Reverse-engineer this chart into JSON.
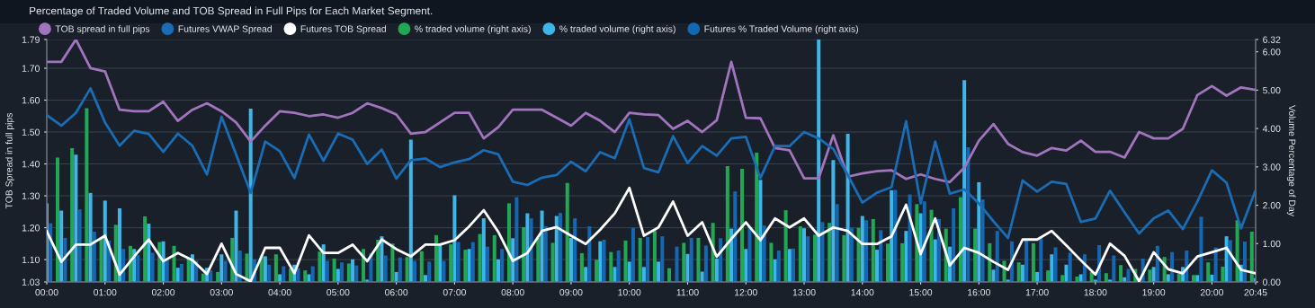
{
  "chart_data": {
    "type": "bar",
    "title": "Percentage of Traded Volume and TOB Spread in Full Pips for Each Market Segment.",
    "ylabel": "TOB Spread in full pips",
    "y2label": "Volume Percentage of Day",
    "categories": [
      "00:00",
      null,
      null,
      null,
      "01:00",
      null,
      null,
      null,
      "02:00",
      null,
      null,
      null,
      "03:00",
      null,
      null,
      null,
      "04:00",
      null,
      null,
      null,
      "05:00",
      null,
      null,
      null,
      "06:00",
      null,
      null,
      null,
      "07:00",
      null,
      null,
      null,
      "08:00",
      null,
      null,
      null,
      "09:00",
      null,
      null,
      null,
      "10:00",
      null,
      null,
      null,
      "11:00",
      null,
      null,
      null,
      "12:00",
      null,
      null,
      null,
      "13:00",
      null,
      null,
      null,
      "14:00",
      null,
      null,
      null,
      "15:00",
      null,
      null,
      null,
      "16:00",
      null,
      null,
      null,
      "17:00",
      null,
      null,
      null,
      "18:00",
      null,
      null,
      null,
      "19:00",
      null,
      null,
      null,
      "20:00",
      null,
      null,
      "20:45"
    ],
    "ylim": [
      1.03,
      1.79
    ],
    "yticks": [
      1.03,
      {
        "value": 1.1,
        "label": "1.10"
      },
      {
        "value": 1.2,
        "label": "1.20"
      },
      {
        "value": 1.3,
        "label": "1.30"
      },
      {
        "value": 1.4,
        "label": "1.40"
      },
      {
        "value": 1.5,
        "label": "1.50"
      },
      {
        "value": 1.6,
        "label": "1.60"
      },
      {
        "value": 1.7,
        "label": "1.70"
      },
      1.79
    ],
    "y2lim": [
      0,
      6.32
    ],
    "y2ticks": [
      {
        "value": 0,
        "label": "0.00"
      },
      {
        "value": 1,
        "label": "1.00"
      },
      {
        "value": 2,
        "label": "2.00"
      },
      {
        "value": 3,
        "label": "3.00"
      },
      {
        "value": 4,
        "label": "4.00"
      },
      {
        "value": 5,
        "label": "5.00"
      },
      {
        "value": 6,
        "label": "6.00"
      },
      6.32
    ],
    "grid": true,
    "legend": "top",
    "series": [
      {
        "name": "% traded volume (right axis)",
        "axis": "y2",
        "color": "#22a855",
        "values": [
          null,
          3.24,
          3.49,
          4.53,
          1.15,
          1.49,
          0.94,
          1.71,
          1.04,
          0.94,
          0.61,
          0.22,
          0.26,
          1.15,
          0.74,
          0.69,
          0.72,
          0.35,
          0.3,
          0.79,
          0.61,
          0.48,
          0.86,
          1.1,
          1.0,
          0.65,
          0.8,
          1.22,
          0.98,
          0.84,
          1.25,
          1.22,
          2.05,
          1.43,
          1.15,
          1.02,
          2.58,
          0.75,
          0.58,
          0.78,
          1.08,
          1.15,
          1.33,
          0.36,
          1.02,
          1.15,
          1.54,
          3.02,
          2.95,
          3.37,
          1.02,
          1.87,
          1.45,
          1.23,
          1.54,
          1.22,
          1.41,
          1.64,
          1.0,
          1.01,
          2.03,
          1.88,
          1.39,
          2.21,
          1.39,
          1.01,
          0.55,
          0.51,
          1.01,
          0.3,
          0.18,
          0.14,
          0.26,
          0.23,
          0.44,
          0.34,
          0.32,
          0.65,
          0.22,
          0.18,
          0.51,
          0.4,
          1.61,
          1.31
        ]
      },
      {
        "name": "% traded volume (right axis)",
        "axis": "y2",
        "color": "#3fb6e8",
        "values": [
          2.05,
          1.86,
          3.32,
          2.32,
          2.12,
          1.92,
          0.86,
          1.52,
          1.06,
          0.37,
          0.72,
          0.37,
          0.72,
          1.86,
          4.52,
          0.67,
          0.2,
          0.45,
          0.2,
          0.98,
          0.34,
          0.59,
          0.06,
          1.19,
          0.26,
          3.71,
          0.18,
          0.98,
          2.26,
          0.86,
          1.66,
          0.59,
          1.14,
          1.79,
          1.86,
          1.72,
          1.15,
          0.39,
          1.06,
          0.39,
          0.53,
          0.39,
          0.53,
          0.0,
          0.73,
          0.27,
          0.61,
          1.39,
          0.86,
          2.66,
          0.59,
          0.86,
          1.4,
          6.32,
          3.18,
          3.86,
          1.72,
          0.84,
          2.39,
          1.33,
          1.79,
          1.11,
          0.92,
          5.26,
          2.6,
          0.32,
          0.06,
          0.45,
          0.26,
          0.72,
          0.45,
          0.2,
          0.06,
          0.06,
          0.12,
          0.0,
          0.39,
          0.2,
          0.39,
          0.18,
          0.19,
          1.19,
          0.45,
          0.1
        ]
      },
      {
        "name": "Futures % Traded Volume (right axis)",
        "axis": "y2",
        "color": "#1468b3",
        "values": [
          1.53,
          1.15,
          1.89,
          1.31,
          1.08,
          0.86,
          0.7,
          0.76,
          0.61,
          0.47,
          0.55,
          0.3,
          0.55,
          0.82,
          0.59,
          0.45,
          0.41,
          0.36,
          0.41,
          0.55,
          0.51,
          0.43,
          0.75,
          0.69,
          0.64,
          0.55,
          0.53,
          0.55,
          1.04,
          1.04,
          0.92,
          0.86,
          2.21,
          1.66,
          1.45,
          1.8,
          1.66,
          1.45,
          1.1,
          0.82,
          1.41,
          1.17,
          1.19,
          0.92,
          1.15,
          0.95,
          1.14,
          2.36,
          1.43,
          1.47,
          0.82,
          0.87,
          1.19,
          1.56,
          2.03,
          1.41,
          1.61,
          1.35,
          2.4,
          2.28,
          2.1,
          1.64,
          1.92,
          3.51,
          2.15,
          1.33,
          1.06,
          1.1,
          1.14,
          0.9,
          0.76,
          0.72,
          0.96,
          0.69,
          0.34,
          0.61,
          0.94,
          0.78,
          0.82,
          1.7,
          0.9,
          1.09,
          1.05,
          null
        ]
      },
      {
        "name": "TOB spread in full pips",
        "type": "line",
        "color": "#a274bd",
        "values": [
          1.72,
          1.72,
          1.79,
          1.7,
          1.69,
          1.57,
          1.565,
          1.565,
          1.595,
          1.535,
          1.57,
          1.59,
          1.565,
          1.53,
          1.47,
          1.52,
          1.565,
          1.56,
          1.55,
          1.555,
          1.545,
          1.56,
          1.59,
          1.575,
          1.555,
          1.495,
          1.5,
          1.53,
          1.56,
          1.56,
          1.48,
          1.515,
          1.57,
          1.57,
          1.57,
          1.545,
          1.52,
          1.56,
          1.535,
          1.5,
          1.56,
          1.555,
          1.553,
          1.51,
          1.535,
          1.5,
          1.537,
          1.72,
          1.545,
          1.543,
          1.45,
          1.443,
          1.355,
          1.355,
          1.49,
          1.36,
          1.37,
          1.377,
          1.38,
          1.353,
          1.367,
          1.353,
          1.343,
          1.388,
          1.473,
          1.525,
          1.463,
          1.437,
          1.426,
          1.45,
          1.442,
          1.473,
          1.438,
          1.438,
          1.42,
          1.5,
          1.48,
          1.48,
          1.51,
          1.616,
          1.644,
          1.614,
          1.64,
          1.632
        ]
      },
      {
        "name": "Futures VWAP Spread",
        "type": "line",
        "color": "#1a6db4",
        "values": [
          1.553,
          1.52,
          1.56,
          1.637,
          1.53,
          1.457,
          1.504,
          1.494,
          1.438,
          1.495,
          1.457,
          1.367,
          1.548,
          1.43,
          1.309,
          1.47,
          1.44,
          1.356,
          1.492,
          1.41,
          1.495,
          1.476,
          1.4,
          1.445,
          1.354,
          1.412,
          1.417,
          1.39,
          1.405,
          1.415,
          1.443,
          1.43,
          1.344,
          1.334,
          1.357,
          1.365,
          1.407,
          1.377,
          1.437,
          1.418,
          1.54,
          1.387,
          1.374,
          1.487,
          1.403,
          1.456,
          1.426,
          1.48,
          1.485,
          1.356,
          1.456,
          1.456,
          1.5,
          1.48,
          1.447,
          1.365,
          1.279,
          1.31,
          1.327,
          1.534,
          1.276,
          1.47,
          1.307,
          1.32,
          1.276,
          1.22,
          1.168,
          1.348,
          1.313,
          1.344,
          1.337,
          1.218,
          1.229,
          1.316,
          1.248,
          1.182,
          1.229,
          1.254,
          1.196,
          1.282,
          1.38,
          1.341,
          1.198,
          1.318
        ]
      },
      {
        "name": "Futures TOB Spread",
        "type": "line",
        "color": "#ffffff",
        "values": [
          1.189,
          1.093,
          1.147,
          1.147,
          1.175,
          1.053,
          1.11,
          1.163,
          1.095,
          1.121,
          1.098,
          1.055,
          1.15,
          1.055,
          1.032,
          1.137,
          1.137,
          1.057,
          1.176,
          1.121,
          1.121,
          1.147,
          1.095,
          1.163,
          1.133,
          1.11,
          1.147,
          1.147,
          1.161,
          1.204,
          1.255,
          1.187,
          1.096,
          1.121,
          1.19,
          1.202,
          1.175,
          1.149,
          1.194,
          1.245,
          1.325,
          1.175,
          1.201,
          1.282,
          1.175,
          1.217,
          1.109,
          1.165,
          1.217,
          1.161,
          1.229,
          1.201,
          1.229,
          1.175,
          1.201,
          1.19,
          1.149,
          1.149,
          1.173,
          1.272,
          1.117,
          1.229,
          1.082,
          1.137,
          1.121,
          1.093,
          1.068,
          1.163,
          1.163,
          1.19,
          1.145,
          1.098,
          1.053,
          1.15,
          1.112,
          1.032,
          1.123,
          1.07,
          1.057,
          1.11,
          1.123,
          1.137,
          1.068,
          1.057
        ]
      }
    ]
  }
}
